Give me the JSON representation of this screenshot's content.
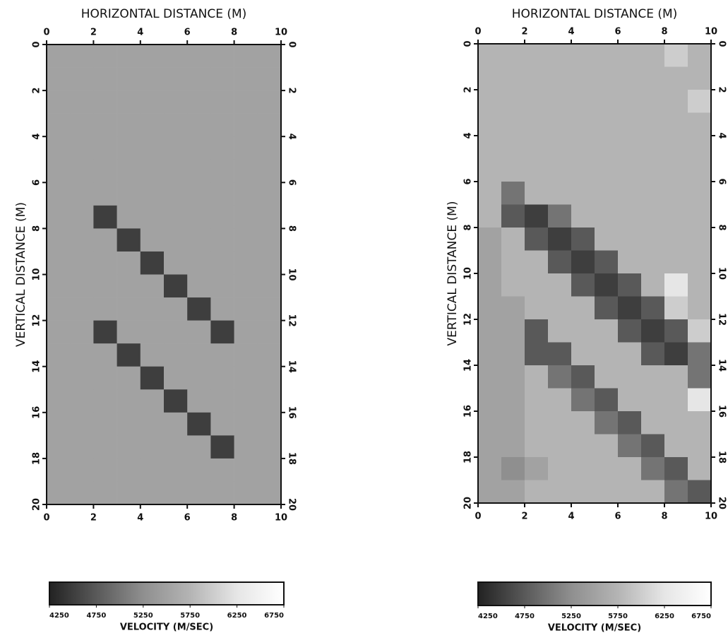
{
  "chart_data": [
    {
      "type": "heatmap",
      "x_label": "HORIZONTAL DISTANCE (M)",
      "y_label": "VERTICAL DISTANCE (M)",
      "xlim": [
        0,
        10
      ],
      "ylim": [
        0,
        20
      ],
      "invert_y": true,
      "xticks": [
        0,
        2,
        4,
        6,
        8,
        10
      ],
      "yticks": [
        0,
        2,
        4,
        6,
        8,
        10,
        12,
        14,
        16,
        18,
        20
      ],
      "xbins": [
        0,
        1,
        2,
        3,
        4,
        5,
        6,
        7,
        8,
        9,
        10
      ],
      "ybins": [
        0,
        1,
        2,
        3,
        4,
        5,
        6,
        7,
        8,
        9,
        10,
        11,
        12,
        13,
        14,
        15,
        16,
        17,
        18,
        19,
        20
      ],
      "values": [
        [
          5500,
          5500,
          5500,
          5500,
          5500,
          5500,
          5500,
          5500,
          5500,
          5500
        ],
        [
          5500,
          5500,
          5500,
          5500,
          5500,
          5500,
          5500,
          5500,
          5500,
          5500
        ],
        [
          5500,
          5500,
          5500,
          5500,
          5500,
          5500,
          5500,
          5500,
          5500,
          5500
        ],
        [
          5500,
          5500,
          5500,
          5500,
          5500,
          5500,
          5500,
          5500,
          5500,
          5500
        ],
        [
          5500,
          5500,
          5500,
          5500,
          5500,
          5500,
          5500,
          5500,
          5500,
          5500
        ],
        [
          5500,
          5500,
          5500,
          5500,
          5500,
          5500,
          5500,
          5500,
          5500,
          5500
        ],
        [
          5500,
          5500,
          5500,
          5500,
          5500,
          5500,
          5500,
          5500,
          5500,
          5500
        ],
        [
          5500,
          5500,
          4500,
          5500,
          5500,
          5500,
          5500,
          5500,
          5500,
          5500
        ],
        [
          5500,
          5500,
          5500,
          4500,
          5500,
          5500,
          5500,
          5500,
          5500,
          5500
        ],
        [
          5500,
          5500,
          5500,
          5500,
          4500,
          5500,
          5500,
          5500,
          5500,
          5500
        ],
        [
          5500,
          5500,
          5500,
          5500,
          5500,
          4500,
          5500,
          5500,
          5500,
          5500
        ],
        [
          5500,
          5500,
          5500,
          5500,
          5500,
          5500,
          4500,
          5500,
          5500,
          5500
        ],
        [
          5500,
          5500,
          4500,
          5500,
          5500,
          5500,
          5500,
          4500,
          5500,
          5500
        ],
        [
          5500,
          5500,
          5500,
          4500,
          5500,
          5500,
          5500,
          5500,
          5500,
          5500
        ],
        [
          5500,
          5500,
          5500,
          5500,
          4500,
          5500,
          5500,
          5500,
          5500,
          5500
        ],
        [
          5500,
          5500,
          5500,
          5500,
          5500,
          4500,
          5500,
          5500,
          5500,
          5500
        ],
        [
          5500,
          5500,
          5500,
          5500,
          5500,
          5500,
          4500,
          5500,
          5500,
          5500
        ],
        [
          5500,
          5500,
          5500,
          5500,
          5500,
          5500,
          5500,
          4500,
          5500,
          5500
        ],
        [
          5500,
          5500,
          5500,
          5500,
          5500,
          5500,
          5500,
          5500,
          5500,
          5500
        ],
        [
          5500,
          5500,
          5500,
          5500,
          5500,
          5500,
          5500,
          5500,
          5500,
          5500
        ]
      ],
      "colorbar": {
        "label": "VELOCITY (M/SEC)",
        "lim": [
          4250,
          6750
        ],
        "ticks": [
          4250,
          4750,
          5250,
          5750,
          6250,
          6750
        ],
        "colors": [
          "#222222",
          "#595959",
          "#8f8f8f",
          "#b4b4b4",
          "#e6e6e6",
          "#ffffff"
        ]
      }
    },
    {
      "type": "heatmap",
      "x_label": "HORIZONTAL DISTANCE (M)",
      "y_label": "VERTICAL DISTANCE (M)",
      "xlim": [
        0,
        10
      ],
      "ylim": [
        0,
        20
      ],
      "invert_y": true,
      "xticks": [
        0,
        2,
        4,
        6,
        8,
        10
      ],
      "yticks": [
        0,
        2,
        4,
        6,
        8,
        10,
        12,
        14,
        16,
        18,
        20
      ],
      "xbins": [
        0,
        1,
        2,
        3,
        4,
        5,
        6,
        7,
        8,
        9,
        10
      ],
      "ybins": [
        0,
        1,
        2,
        3,
        4,
        5,
        6,
        7,
        8,
        9,
        10,
        11,
        12,
        13,
        14,
        15,
        16,
        17,
        18,
        19,
        20
      ],
      "values": [
        [
          5750,
          5750,
          5750,
          5750,
          5750,
          5750,
          5750,
          5750,
          6000,
          5750
        ],
        [
          5750,
          5750,
          5750,
          5750,
          5750,
          5750,
          5750,
          5750,
          5750,
          5750
        ],
        [
          5750,
          5750,
          5750,
          5750,
          5750,
          5750,
          5750,
          5750,
          5750,
          6000
        ],
        [
          5750,
          5750,
          5750,
          5750,
          5750,
          5750,
          5750,
          5750,
          5750,
          5750
        ],
        [
          5750,
          5750,
          5750,
          5750,
          5750,
          5750,
          5750,
          5750,
          5750,
          5750
        ],
        [
          5750,
          5750,
          5750,
          5750,
          5750,
          5750,
          5750,
          5750,
          5750,
          5750
        ],
        [
          5750,
          5000,
          5750,
          5750,
          5750,
          5750,
          5750,
          5750,
          5750,
          5750
        ],
        [
          5750,
          4750,
          4500,
          5000,
          5750,
          5750,
          5750,
          5750,
          5750,
          5750
        ],
        [
          5500,
          5750,
          4750,
          4500,
          4750,
          5750,
          5750,
          5750,
          5750,
          5750
        ],
        [
          5500,
          5750,
          5750,
          4750,
          4500,
          4750,
          5750,
          5750,
          5750,
          5750
        ],
        [
          5500,
          5750,
          5750,
          5750,
          4750,
          4500,
          4750,
          5750,
          6250,
          5750
        ],
        [
          5500,
          5500,
          5750,
          5750,
          5750,
          4750,
          4500,
          4750,
          6000,
          5750
        ],
        [
          5500,
          5500,
          4750,
          5750,
          5750,
          5750,
          4750,
          4500,
          4750,
          6000
        ],
        [
          5500,
          5500,
          4750,
          4750,
          5750,
          5750,
          5750,
          4750,
          4500,
          5000
        ],
        [
          5500,
          5500,
          5750,
          5000,
          4750,
          5750,
          5750,
          5750,
          5750,
          5000
        ],
        [
          5500,
          5500,
          5750,
          5750,
          5000,
          4750,
          5750,
          5750,
          5750,
          6250
        ],
        [
          5500,
          5500,
          5750,
          5750,
          5750,
          5000,
          4750,
          5750,
          5750,
          5750
        ],
        [
          5500,
          5500,
          5750,
          5750,
          5750,
          5750,
          5000,
          4750,
          5750,
          5750
        ],
        [
          5500,
          5250,
          5500,
          5750,
          5750,
          5750,
          5750,
          5000,
          4750,
          5750
        ],
        [
          5500,
          5500,
          5750,
          5750,
          5750,
          5750,
          5750,
          5750,
          5000,
          4750
        ]
      ],
      "colorbar": {
        "label": "VELOCITY (M/SEC)",
        "lim": [
          4250,
          6750
        ],
        "ticks": [
          4250,
          4750,
          5250,
          5750,
          6250,
          6750
        ],
        "colors": [
          "#222222",
          "#595959",
          "#8f8f8f",
          "#b4b4b4",
          "#e6e6e6",
          "#ffffff"
        ]
      }
    }
  ]
}
